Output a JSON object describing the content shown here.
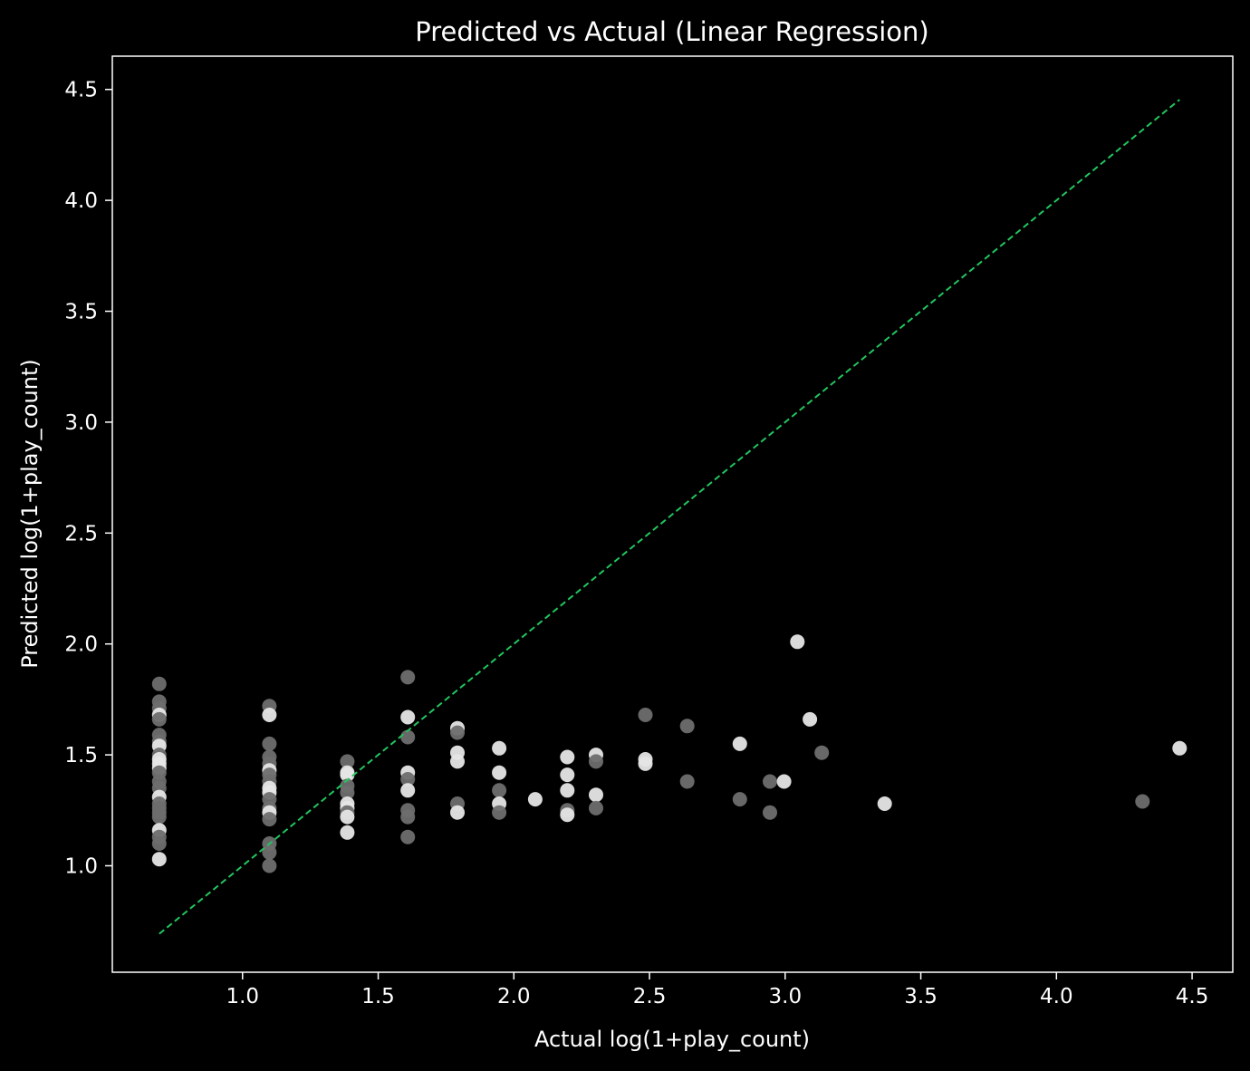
{
  "chart_data": {
    "type": "scatter",
    "title": "Predicted vs Actual (Linear Regression)",
    "xlabel": "Actual log(1+play_count)",
    "ylabel": "Predicted log(1+play_count)",
    "xlim": [
      0.52,
      4.65
    ],
    "ylim": [
      0.52,
      4.65
    ],
    "xticks": [
      "1.0",
      "1.5",
      "2.0",
      "2.5",
      "3.0",
      "3.5",
      "4.0",
      "4.5"
    ],
    "yticks": [
      "1.0",
      "1.5",
      "2.0",
      "2.5",
      "3.0",
      "3.5",
      "4.0",
      "4.5"
    ],
    "grid": false,
    "legend": "none",
    "reference_line": {
      "from": [
        0.693,
        0.693
      ],
      "to": [
        4.454,
        4.454
      ],
      "style": "dashed",
      "color": "#22c55e"
    },
    "colors": {
      "background": "#000000",
      "axes": "#ffffff",
      "point_light": "#e6e6e6",
      "point_dark": "#6e6e6e"
    },
    "points": [
      {
        "x": 0.693,
        "y": 1.82,
        "tone": "dark"
      },
      {
        "x": 0.693,
        "y": 1.74,
        "tone": "dark"
      },
      {
        "x": 0.693,
        "y": 1.71,
        "tone": "dark"
      },
      {
        "x": 0.693,
        "y": 1.68,
        "tone": "light"
      },
      {
        "x": 0.693,
        "y": 1.66,
        "tone": "dark"
      },
      {
        "x": 0.693,
        "y": 1.59,
        "tone": "dark"
      },
      {
        "x": 0.693,
        "y": 1.56,
        "tone": "dark"
      },
      {
        "x": 0.693,
        "y": 1.54,
        "tone": "light"
      },
      {
        "x": 0.693,
        "y": 1.5,
        "tone": "dark"
      },
      {
        "x": 0.693,
        "y": 1.48,
        "tone": "light"
      },
      {
        "x": 0.693,
        "y": 1.46,
        "tone": "light"
      },
      {
        "x": 0.693,
        "y": 1.44,
        "tone": "light"
      },
      {
        "x": 0.693,
        "y": 1.42,
        "tone": "dark"
      },
      {
        "x": 0.693,
        "y": 1.38,
        "tone": "dark"
      },
      {
        "x": 0.693,
        "y": 1.35,
        "tone": "dark"
      },
      {
        "x": 0.693,
        "y": 1.31,
        "tone": "light"
      },
      {
        "x": 0.693,
        "y": 1.28,
        "tone": "dark"
      },
      {
        "x": 0.693,
        "y": 1.26,
        "tone": "dark"
      },
      {
        "x": 0.693,
        "y": 1.24,
        "tone": "dark"
      },
      {
        "x": 0.693,
        "y": 1.22,
        "tone": "dark"
      },
      {
        "x": 0.693,
        "y": 1.16,
        "tone": "light"
      },
      {
        "x": 0.693,
        "y": 1.13,
        "tone": "dark"
      },
      {
        "x": 0.693,
        "y": 1.1,
        "tone": "dark"
      },
      {
        "x": 0.693,
        "y": 1.03,
        "tone": "light"
      },
      {
        "x": 1.099,
        "y": 1.72,
        "tone": "dark"
      },
      {
        "x": 1.099,
        "y": 1.68,
        "tone": "light"
      },
      {
        "x": 1.099,
        "y": 1.55,
        "tone": "dark"
      },
      {
        "x": 1.099,
        "y": 1.49,
        "tone": "dark"
      },
      {
        "x": 1.099,
        "y": 1.46,
        "tone": "dark"
      },
      {
        "x": 1.099,
        "y": 1.43,
        "tone": "light"
      },
      {
        "x": 1.099,
        "y": 1.41,
        "tone": "dark"
      },
      {
        "x": 1.099,
        "y": 1.38,
        "tone": "dark"
      },
      {
        "x": 1.099,
        "y": 1.35,
        "tone": "light"
      },
      {
        "x": 1.099,
        "y": 1.33,
        "tone": "light"
      },
      {
        "x": 1.099,
        "y": 1.3,
        "tone": "dark"
      },
      {
        "x": 1.099,
        "y": 1.26,
        "tone": "dark"
      },
      {
        "x": 1.099,
        "y": 1.24,
        "tone": "light"
      },
      {
        "x": 1.099,
        "y": 1.21,
        "tone": "dark"
      },
      {
        "x": 1.099,
        "y": 1.1,
        "tone": "dark"
      },
      {
        "x": 1.099,
        "y": 1.06,
        "tone": "dark"
      },
      {
        "x": 1.099,
        "y": 1.0,
        "tone": "dark"
      },
      {
        "x": 1.386,
        "y": 1.47,
        "tone": "dark"
      },
      {
        "x": 1.386,
        "y": 1.42,
        "tone": "light"
      },
      {
        "x": 1.386,
        "y": 1.41,
        "tone": "light"
      },
      {
        "x": 1.386,
        "y": 1.36,
        "tone": "dark"
      },
      {
        "x": 1.386,
        "y": 1.33,
        "tone": "dark"
      },
      {
        "x": 1.386,
        "y": 1.28,
        "tone": "light"
      },
      {
        "x": 1.386,
        "y": 1.26,
        "tone": "light"
      },
      {
        "x": 1.386,
        "y": 1.24,
        "tone": "dark"
      },
      {
        "x": 1.386,
        "y": 1.22,
        "tone": "light"
      },
      {
        "x": 1.386,
        "y": 1.15,
        "tone": "light"
      },
      {
        "x": 1.609,
        "y": 1.85,
        "tone": "dark"
      },
      {
        "x": 1.609,
        "y": 1.67,
        "tone": "light"
      },
      {
        "x": 1.609,
        "y": 1.58,
        "tone": "dark"
      },
      {
        "x": 1.609,
        "y": 1.42,
        "tone": "light"
      },
      {
        "x": 1.609,
        "y": 1.39,
        "tone": "dark"
      },
      {
        "x": 1.609,
        "y": 1.34,
        "tone": "light"
      },
      {
        "x": 1.609,
        "y": 1.25,
        "tone": "dark"
      },
      {
        "x": 1.609,
        "y": 1.22,
        "tone": "dark"
      },
      {
        "x": 1.609,
        "y": 1.13,
        "tone": "dark"
      },
      {
        "x": 1.792,
        "y": 1.62,
        "tone": "light"
      },
      {
        "x": 1.792,
        "y": 1.6,
        "tone": "dark"
      },
      {
        "x": 1.792,
        "y": 1.51,
        "tone": "light"
      },
      {
        "x": 1.792,
        "y": 1.47,
        "tone": "light"
      },
      {
        "x": 1.792,
        "y": 1.28,
        "tone": "dark"
      },
      {
        "x": 1.792,
        "y": 1.24,
        "tone": "light"
      },
      {
        "x": 1.946,
        "y": 1.53,
        "tone": "light"
      },
      {
        "x": 1.946,
        "y": 1.42,
        "tone": "light"
      },
      {
        "x": 1.946,
        "y": 1.34,
        "tone": "dark"
      },
      {
        "x": 1.946,
        "y": 1.28,
        "tone": "light"
      },
      {
        "x": 1.946,
        "y": 1.24,
        "tone": "dark"
      },
      {
        "x": 2.079,
        "y": 1.3,
        "tone": "light"
      },
      {
        "x": 2.197,
        "y": 1.49,
        "tone": "light"
      },
      {
        "x": 2.197,
        "y": 1.41,
        "tone": "light"
      },
      {
        "x": 2.197,
        "y": 1.34,
        "tone": "light"
      },
      {
        "x": 2.197,
        "y": 1.25,
        "tone": "dark"
      },
      {
        "x": 2.197,
        "y": 1.23,
        "tone": "light"
      },
      {
        "x": 2.303,
        "y": 1.5,
        "tone": "light"
      },
      {
        "x": 2.303,
        "y": 1.47,
        "tone": "dark"
      },
      {
        "x": 2.303,
        "y": 1.32,
        "tone": "light"
      },
      {
        "x": 2.303,
        "y": 1.26,
        "tone": "dark"
      },
      {
        "x": 2.485,
        "y": 1.68,
        "tone": "dark"
      },
      {
        "x": 2.485,
        "y": 1.48,
        "tone": "light"
      },
      {
        "x": 2.485,
        "y": 1.46,
        "tone": "light"
      },
      {
        "x": 2.639,
        "y": 1.63,
        "tone": "dark"
      },
      {
        "x": 2.639,
        "y": 1.38,
        "tone": "dark"
      },
      {
        "x": 2.833,
        "y": 1.55,
        "tone": "light"
      },
      {
        "x": 2.833,
        "y": 1.3,
        "tone": "dark"
      },
      {
        "x": 2.944,
        "y": 1.38,
        "tone": "dark"
      },
      {
        "x": 2.944,
        "y": 1.24,
        "tone": "dark"
      },
      {
        "x": 2.996,
        "y": 1.38,
        "tone": "light"
      },
      {
        "x": 3.045,
        "y": 2.01,
        "tone": "light"
      },
      {
        "x": 3.091,
        "y": 1.66,
        "tone": "light"
      },
      {
        "x": 3.135,
        "y": 1.51,
        "tone": "dark"
      },
      {
        "x": 3.367,
        "y": 1.28,
        "tone": "light"
      },
      {
        "x": 4.317,
        "y": 1.29,
        "tone": "dark"
      },
      {
        "x": 4.454,
        "y": 1.53,
        "tone": "light"
      }
    ]
  }
}
